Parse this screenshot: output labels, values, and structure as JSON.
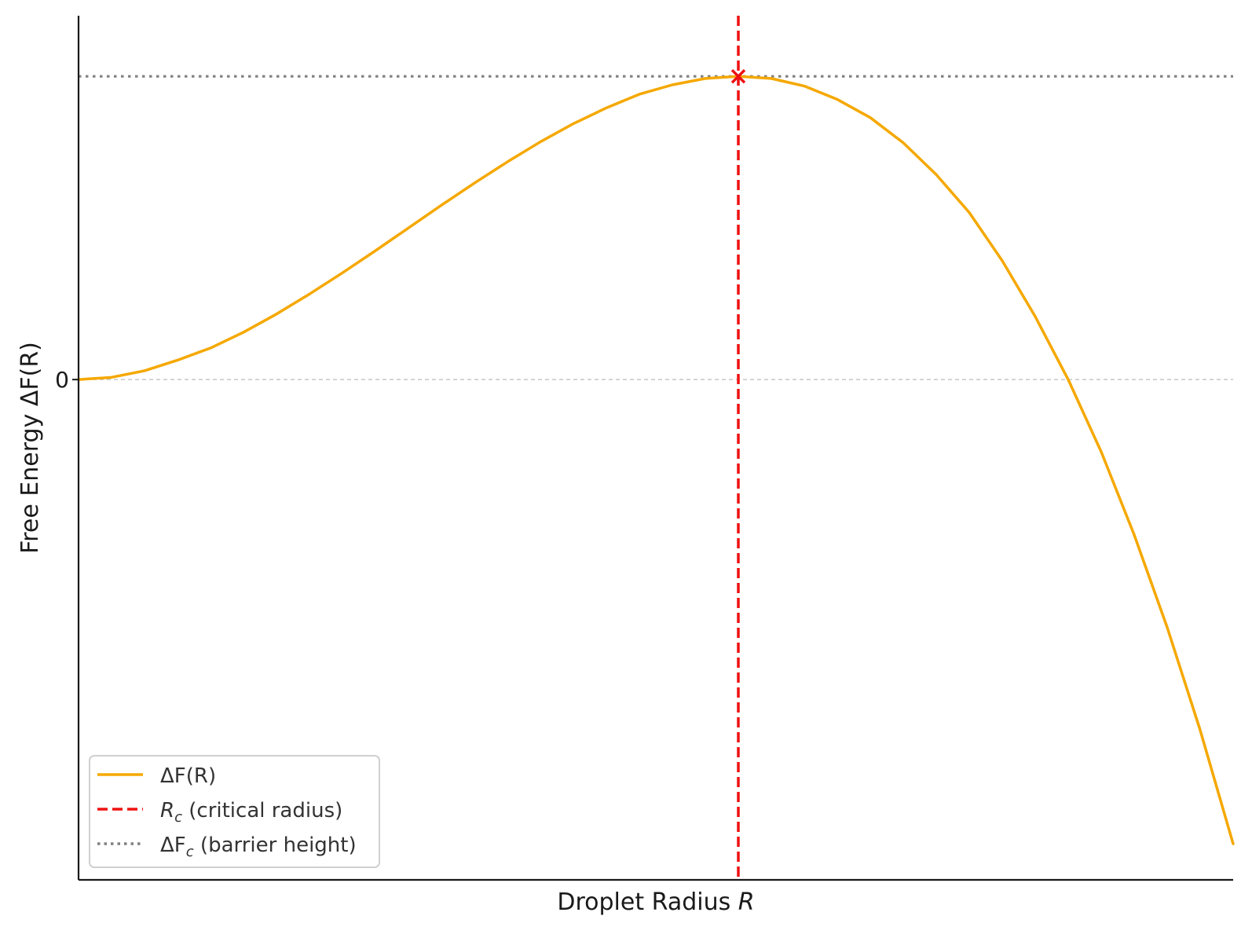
{
  "chart_data": {
    "type": "line",
    "title": "",
    "xlabel": "Droplet Radius ",
    "xlabel_var": "R",
    "ylabel": "Free Energy ",
    "ylabel_expr": "ΔF(R)",
    "x_ticks": [],
    "y_ticks": [
      {
        "value": 0,
        "label": "0"
      }
    ],
    "xlim": [
      0,
      1.75
    ],
    "ylim": [
      -1.65,
      1.2
    ],
    "grid": false,
    "legend_position": "lower-left",
    "critical_radius": 1.0,
    "barrier_height": 1.0,
    "critical_point": {
      "x": 1.0,
      "y": 1.0
    },
    "series": [
      {
        "name": "ΔF(R)",
        "style": "solid",
        "color": "#f5a800",
        "x": [
          0,
          0.05,
          0.1,
          0.15,
          0.2,
          0.25,
          0.3,
          0.35,
          0.4,
          0.45,
          0.5,
          0.55,
          0.6,
          0.65,
          0.7,
          0.75,
          0.8,
          0.85,
          0.9,
          0.95,
          1.0,
          1.05,
          1.1,
          1.15,
          1.2,
          1.25,
          1.3,
          1.35,
          1.4,
          1.45,
          1.5,
          1.55,
          1.6,
          1.65,
          1.7,
          1.75
        ],
        "y": [
          0,
          0.0073,
          0.029,
          0.064,
          0.104,
          0.156,
          0.216,
          0.282,
          0.352,
          0.425,
          0.5,
          0.575,
          0.648,
          0.718,
          0.784,
          0.844,
          0.896,
          0.941,
          0.972,
          0.993,
          1.0,
          0.993,
          0.968,
          0.924,
          0.864,
          0.781,
          0.676,
          0.551,
          0.392,
          0.208,
          0.0,
          -0.238,
          -0.512,
          -0.817,
          -1.156,
          -1.531
        ]
      }
    ],
    "legend": [
      {
        "key": "curve",
        "label": "ΔF(R)",
        "color": "#f5a800",
        "style": "solid"
      },
      {
        "key": "rc",
        "label_var": "R",
        "label_sub": "c",
        "label_rest": " (critical radius)",
        "color": "#ee1111",
        "style": "dashed"
      },
      {
        "key": "fc",
        "label_var": "ΔF",
        "label_sub": "c",
        "label_rest": " (barrier height)",
        "color": "#808080",
        "style": "dotted"
      }
    ],
    "colors": {
      "curve": "#f5a800",
      "critical_line": "#ee1111",
      "barrier_line": "#808080",
      "zero_line": "#c8c8c8",
      "axis": "#1a1a1a"
    }
  }
}
